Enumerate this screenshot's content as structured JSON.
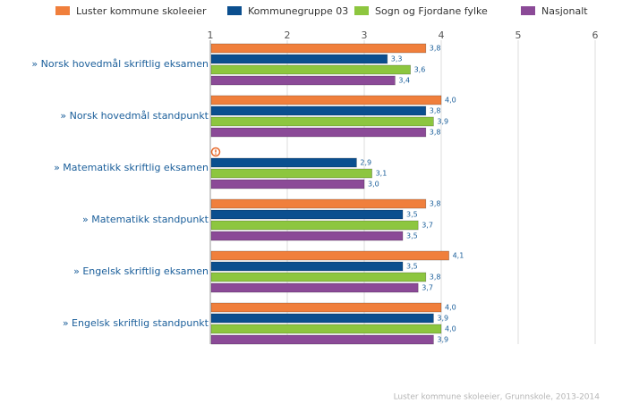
{
  "chart_data": {
    "type": "bar",
    "orientation": "horizontal",
    "categories": [
      "» Norsk hovedmål skriftlig eksamen",
      "» Norsk hovedmål standpunkt",
      "» Matematikk skriftlig eksamen",
      "» Matematikk standpunkt",
      "» Engelsk skriftlig eksamen",
      "» Engelsk skriftlig standpunkt"
    ],
    "series": [
      {
        "name": "Luster kommune skoleeier",
        "color": "#f07f3c",
        "values": [
          3.8,
          4.0,
          null,
          3.8,
          4.1,
          4.0
        ],
        "value_labels": [
          "3,8",
          "4,0",
          null,
          "3,8",
          "4,1",
          "4,0"
        ]
      },
      {
        "name": "Kommunegruppe 03",
        "color": "#0b4f8f",
        "values": [
          3.3,
          3.8,
          2.9,
          3.5,
          3.5,
          3.9
        ],
        "value_labels": [
          "3,3",
          "3,8",
          "2,9",
          "3,5",
          "3,5",
          "3,9"
        ]
      },
      {
        "name": "Sogn og Fjordane fylke",
        "color": "#8dc63f",
        "values": [
          3.6,
          3.9,
          3.1,
          3.7,
          3.8,
          4.0
        ],
        "value_labels": [
          "3,6",
          "3,9",
          "3,1",
          "3,7",
          "3,8",
          "4,0"
        ]
      },
      {
        "name": "Nasjonalt",
        "color": "#8b4a97",
        "values": [
          3.4,
          3.8,
          3.0,
          3.5,
          3.7,
          3.9
        ],
        "value_labels": [
          "3,4",
          "3,8",
          "3,0",
          "3,5",
          "3,7",
          "3,9"
        ]
      }
    ],
    "xlim": [
      1,
      6
    ],
    "xticks": [
      1,
      2,
      3,
      4,
      5,
      6
    ],
    "grid": true,
    "source": "Luster kommune skoleeier, Grunnskole, 2013-2014"
  }
}
